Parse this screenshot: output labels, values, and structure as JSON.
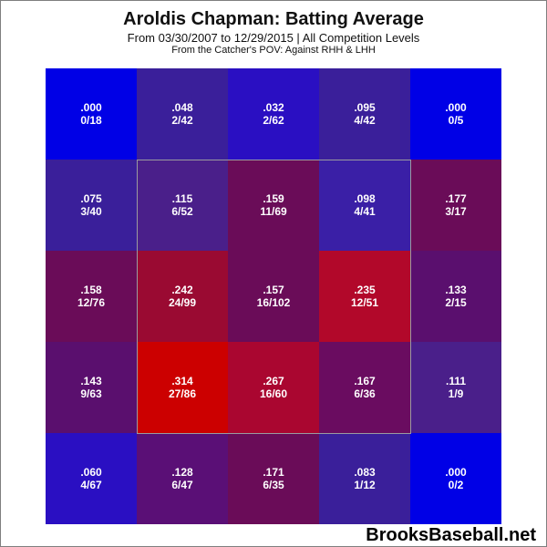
{
  "header": {
    "title": "Aroldis Chapman: Batting Average",
    "subtitle": "From 03/30/2007 to 12/29/2015 | All Competition Levels",
    "note": "From the Catcher's POV:  Against RHH & LHH"
  },
  "watermark": "BrooksBaseball.net",
  "chart_data": {
    "type": "heatmap",
    "title": "Aroldis Chapman: Batting Average",
    "subtitle": "From 03/30/2007 to 12/29/2015 | All Competition Levels",
    "rows": 5,
    "cols": 5,
    "strike_zone": {
      "rows": [
        1,
        3
      ],
      "cols": [
        1,
        3
      ]
    },
    "cells": [
      [
        {
          "avg": ".000",
          "ab": "0/18",
          "color": "#0000e6"
        },
        {
          "avg": ".048",
          "ab": "2/42",
          "color": "#3a1f9a"
        },
        {
          "avg": ".032",
          "ab": "2/62",
          "color": "#2a0fc2"
        },
        {
          "avg": ".095",
          "ab": "4/42",
          "color": "#3a1f9a"
        },
        {
          "avg": ".000",
          "ab": "0/5",
          "color": "#0000e6"
        }
      ],
      [
        {
          "avg": ".075",
          "ab": "3/40",
          "color": "#3a1f9a"
        },
        {
          "avg": ".115",
          "ab": "6/52",
          "color": "#4a1f8a"
        },
        {
          "avg": ".159",
          "ab": "11/69",
          "color": "#6a0c58"
        },
        {
          "avg": ".098",
          "ab": "4/41",
          "color": "#3a1fa6"
        },
        {
          "avg": ".177",
          "ab": "3/17",
          "color": "#6a0c58"
        }
      ],
      [
        {
          "avg": ".158",
          "ab": "12/76",
          "color": "#6a0c58"
        },
        {
          "avg": ".242",
          "ab": "24/99",
          "color": "#9a0a32"
        },
        {
          "avg": ".157",
          "ab": "16/102",
          "color": "#6a0c58"
        },
        {
          "avg": ".235",
          "ab": "12/51",
          "color": "#b2082a"
        },
        {
          "avg": ".133",
          "ab": "2/15",
          "color": "#5a0f6e"
        }
      ],
      [
        {
          "avg": ".143",
          "ab": "9/63",
          "color": "#5a0f6e"
        },
        {
          "avg": ".314",
          "ab": "27/86",
          "color": "#cc0000"
        },
        {
          "avg": ".267",
          "ab": "16/60",
          "color": "#aa0630"
        },
        {
          "avg": ".167",
          "ab": "6/36",
          "color": "#6a0c60"
        },
        {
          "avg": ".111",
          "ab": "1/9",
          "color": "#4a1f8a"
        }
      ],
      [
        {
          "avg": ".060",
          "ab": "4/67",
          "color": "#2a0fc2"
        },
        {
          "avg": ".128",
          "ab": "6/47",
          "color": "#5a0f76"
        },
        {
          "avg": ".171",
          "ab": "6/35",
          "color": "#6a0c58"
        },
        {
          "avg": ".083",
          "ab": "1/12",
          "color": "#3a1f9a"
        },
        {
          "avg": ".000",
          "ab": "0/2",
          "color": "#0000e6"
        }
      ]
    ]
  }
}
